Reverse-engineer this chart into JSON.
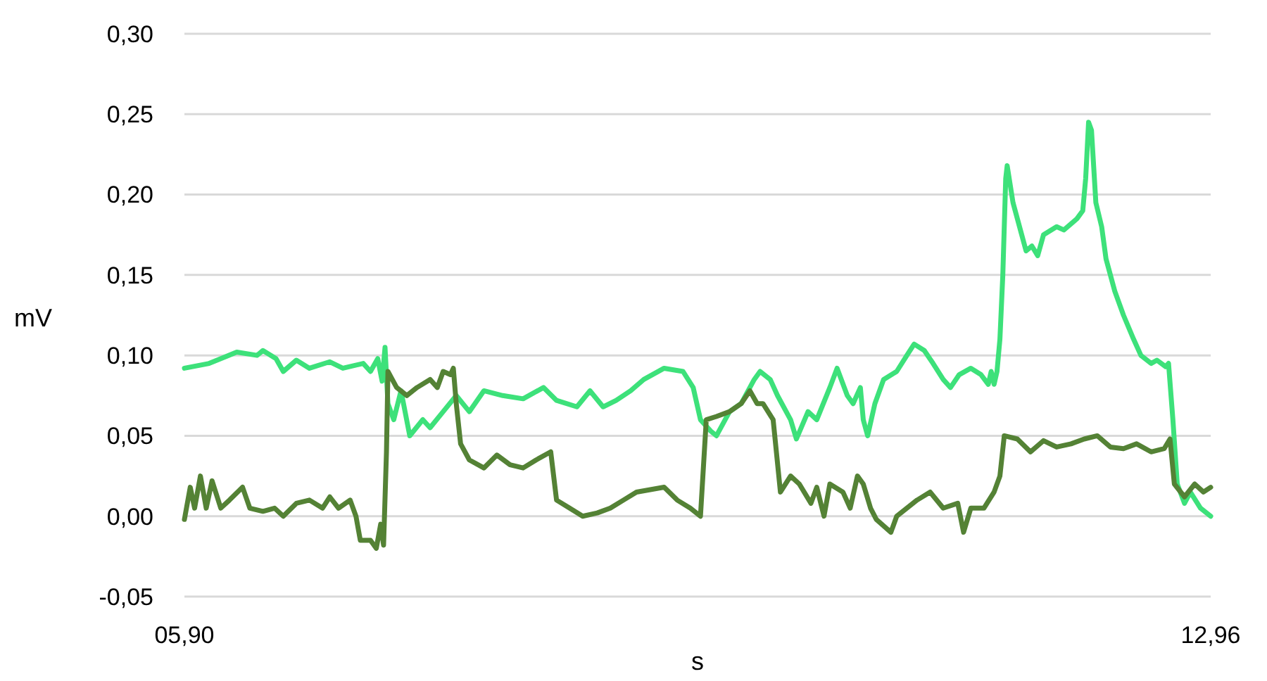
{
  "chart_data": {
    "type": "line",
    "xlabel": "s",
    "ylabel": "mV",
    "xlim": [
      5.9,
      12.96
    ],
    "ylim": [
      -0.05,
      0.3
    ],
    "xticks": [
      {
        "value": 5.9,
        "label": "05,90"
      },
      {
        "value": 12.96,
        "label": "12,96"
      }
    ],
    "yticks": [
      {
        "value": -0.05,
        "label": "-0,05"
      },
      {
        "value": 0,
        "label": "0,00"
      },
      {
        "value": 0.05,
        "label": "0,05"
      },
      {
        "value": 0.1,
        "label": "0,10"
      },
      {
        "value": 0.15,
        "label": "0,15"
      },
      {
        "value": 0.2,
        "label": "0,20"
      },
      {
        "value": 0.25,
        "label": "0,25"
      },
      {
        "value": 0.3,
        "label": "0,30"
      }
    ],
    "grid": "y",
    "marker": "none",
    "line_style": "solid",
    "series": [
      {
        "color": "#3de17a",
        "x": [
          5.9,
          6.07,
          6.26,
          6.4,
          6.44,
          6.53,
          6.58,
          6.67,
          6.76,
          6.9,
          6.99,
          7.13,
          7.18,
          7.23,
          7.26,
          7.28,
          7.3,
          7.34,
          7.39,
          7.45,
          7.54,
          7.59,
          7.68,
          7.77,
          7.86,
          7.96,
          8.09,
          8.23,
          8.37,
          8.46,
          8.6,
          8.69,
          8.78,
          8.87,
          8.97,
          9.06,
          9.2,
          9.33,
          9.4,
          9.45,
          9.52,
          9.56,
          9.65,
          9.73,
          9.82,
          9.86,
          9.93,
          9.98,
          10.07,
          10.11,
          10.19,
          10.25,
          10.34,
          10.39,
          10.46,
          10.5,
          10.55,
          10.57,
          10.6,
          10.65,
          10.71,
          10.8,
          10.87,
          10.92,
          10.99,
          11.05,
          11.12,
          11.17,
          11.23,
          11.31,
          11.38,
          11.43,
          11.45,
          11.47,
          11.49,
          11.51,
          11.53,
          11.55,
          11.56,
          11.6,
          11.66,
          11.69,
          11.73,
          11.77,
          11.81,
          11.9,
          11.95,
          12.04,
          12.08,
          12.1,
          12.12,
          12.14,
          12.17,
          12.21,
          12.24,
          12.3,
          12.36,
          12.43,
          12.48,
          12.55,
          12.59,
          12.65,
          12.67,
          12.7,
          12.73,
          12.78,
          12.82,
          12.89,
          12.96
        ],
        "values": [
          0.092,
          0.095,
          0.102,
          0.1,
          0.103,
          0.098,
          0.09,
          0.097,
          0.092,
          0.096,
          0.092,
          0.095,
          0.09,
          0.098,
          0.084,
          0.105,
          0.07,
          0.06,
          0.078,
          0.05,
          0.06,
          0.055,
          0.065,
          0.075,
          0.065,
          0.078,
          0.075,
          0.073,
          0.08,
          0.072,
          0.068,
          0.078,
          0.068,
          0.072,
          0.078,
          0.085,
          0.092,
          0.09,
          0.08,
          0.06,
          0.053,
          0.05,
          0.065,
          0.07,
          0.085,
          0.09,
          0.085,
          0.075,
          0.06,
          0.048,
          0.065,
          0.06,
          0.08,
          0.092,
          0.075,
          0.07,
          0.08,
          0.06,
          0.05,
          0.07,
          0.085,
          0.09,
          0.1,
          0.107,
          0.103,
          0.095,
          0.085,
          0.08,
          0.088,
          0.092,
          0.088,
          0.082,
          0.09,
          0.082,
          0.09,
          0.11,
          0.15,
          0.21,
          0.218,
          0.195,
          0.175,
          0.165,
          0.168,
          0.162,
          0.175,
          0.18,
          0.178,
          0.185,
          0.19,
          0.21,
          0.245,
          0.24,
          0.195,
          0.18,
          0.16,
          0.14,
          0.125,
          0.11,
          0.1,
          0.095,
          0.097,
          0.093,
          0.095,
          0.06,
          0.02,
          0.008,
          0.015,
          0.005,
          0.0
        ]
      },
      {
        "color": "#548235",
        "x": [
          5.9,
          5.94,
          5.97,
          6.01,
          6.05,
          6.09,
          6.15,
          6.21,
          6.3,
          6.35,
          6.44,
          6.52,
          6.58,
          6.67,
          6.76,
          6.85,
          6.9,
          6.96,
          7.04,
          7.08,
          7.11,
          7.18,
          7.22,
          7.25,
          7.27,
          7.29,
          7.3,
          7.36,
          7.43,
          7.5,
          7.59,
          7.64,
          7.68,
          7.73,
          7.75,
          7.77,
          7.8,
          7.86,
          7.96,
          8.05,
          8.14,
          8.23,
          8.32,
          8.42,
          8.46,
          8.55,
          8.64,
          8.74,
          8.83,
          8.92,
          9.01,
          9.2,
          9.29,
          9.38,
          9.45,
          9.49,
          9.56,
          9.65,
          9.73,
          9.79,
          9.84,
          9.88,
          9.95,
          10.0,
          10.07,
          10.13,
          10.21,
          10.25,
          10.3,
          10.34,
          10.43,
          10.48,
          10.53,
          10.57,
          10.62,
          10.66,
          10.76,
          10.8,
          10.87,
          10.94,
          11.03,
          11.12,
          11.22,
          11.26,
          11.31,
          11.4,
          11.47,
          11.51,
          11.54,
          11.63,
          11.72,
          11.81,
          11.9,
          12.0,
          12.09,
          12.18,
          12.27,
          12.36,
          12.45,
          12.55,
          12.64,
          12.68,
          12.71,
          12.78,
          12.85,
          12.91,
          12.96
        ],
        "values": [
          -0.002,
          0.018,
          0.005,
          0.025,
          0.005,
          0.022,
          0.005,
          0.01,
          0.018,
          0.005,
          0.003,
          0.005,
          0.0,
          0.008,
          0.01,
          0.005,
          0.012,
          0.005,
          0.01,
          0.0,
          -0.015,
          -0.015,
          -0.02,
          -0.005,
          -0.018,
          0.04,
          0.09,
          0.08,
          0.075,
          0.08,
          0.085,
          0.08,
          0.09,
          0.088,
          0.092,
          0.07,
          0.045,
          0.035,
          0.03,
          0.038,
          0.032,
          0.03,
          0.035,
          0.04,
          0.01,
          0.005,
          0.0,
          0.002,
          0.005,
          0.01,
          0.015,
          0.018,
          0.01,
          0.005,
          0.0,
          0.06,
          0.062,
          0.065,
          0.07,
          0.078,
          0.07,
          0.07,
          0.06,
          0.015,
          0.025,
          0.02,
          0.008,
          0.018,
          0.0,
          0.02,
          0.015,
          0.005,
          0.025,
          0.02,
          0.005,
          -0.002,
          -0.01,
          0.0,
          0.005,
          0.01,
          0.015,
          0.005,
          0.008,
          -0.01,
          0.005,
          0.005,
          0.015,
          0.025,
          0.05,
          0.048,
          0.04,
          0.047,
          0.043,
          0.045,
          0.048,
          0.05,
          0.043,
          0.042,
          0.045,
          0.04,
          0.042,
          0.048,
          0.02,
          0.012,
          0.02,
          0.015,
          0.018
        ]
      }
    ]
  }
}
